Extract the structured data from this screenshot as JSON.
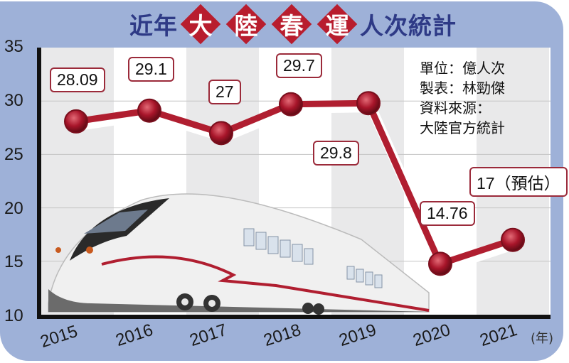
{
  "title": {
    "prefix": "近年",
    "highlight_chars": [
      "大",
      "陸",
      "春",
      "運"
    ],
    "suffix": "人次統計"
  },
  "notes": {
    "line1": "單位：億人次",
    "line2": "製表：林勁傑",
    "line3": "資料來源：",
    "line4": "大陸官方統計"
  },
  "x_unit": "(年)",
  "colors": {
    "frame": "#9eb1d8",
    "title_text": "#2e3a86",
    "highlight": "#b81d2e",
    "line": "#b01e30",
    "marker": "#a8152a"
  },
  "chart_data": {
    "type": "line",
    "title": "近年大陸春運人次統計",
    "xlabel": "(年)",
    "ylabel": "單位：億人次",
    "categories": [
      "2015",
      "2016",
      "2017",
      "2018",
      "2019",
      "2020",
      "2021"
    ],
    "values": [
      28.09,
      29.1,
      27,
      29.7,
      29.8,
      14.76,
      17
    ],
    "data_labels": [
      "28.09",
      "29.1",
      "27",
      "29.7",
      "29.8",
      "14.76",
      "17（預估）"
    ],
    "y_ticks": [
      "35",
      "30",
      "25",
      "20",
      "15",
      "10"
    ],
    "ylim": [
      10,
      35
    ],
    "grid": true,
    "legend": "none",
    "annotations": [
      "單位：億人次",
      "製表：林勁傑",
      "資料來源：大陸官方統計",
      "2021 value is estimated (預估)"
    ]
  }
}
